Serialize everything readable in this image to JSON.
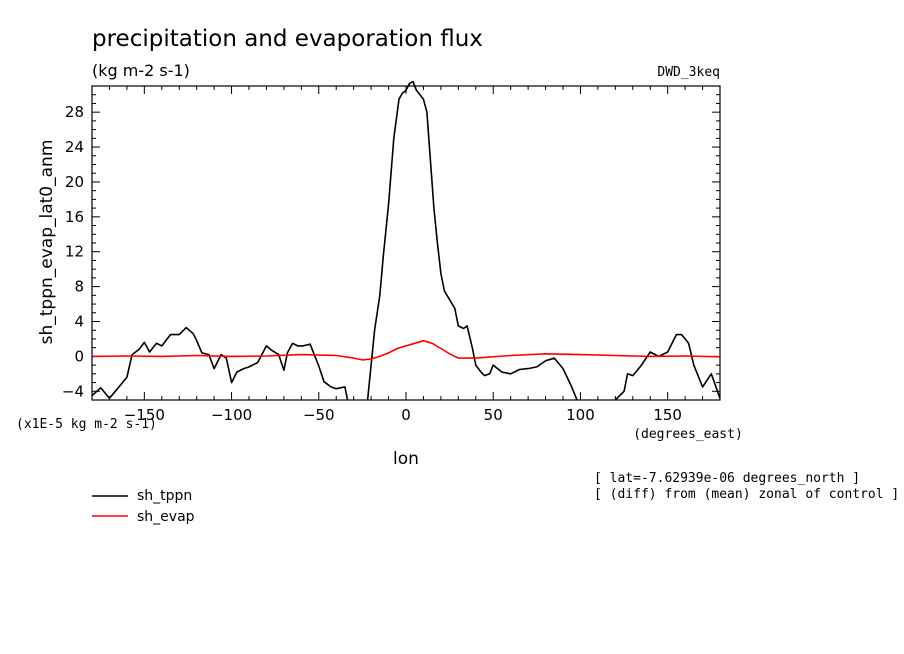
{
  "chart_data": {
    "type": "line",
    "title": "precipitation and evaporation flux",
    "units": "(kg m-2 s-1)",
    "dataset_label": "DWD_3keq",
    "ylabel": "sh_tppn_evap_lat0_anm",
    "xlabel": "lon",
    "x_units": "(degrees_east)",
    "y_scale_note": "(x1E-5 kg m-2 s-1)",
    "xlim": [
      -180,
      180
    ],
    "ylim": [
      -5,
      31
    ],
    "x_ticks": [
      -150,
      -100,
      -50,
      0,
      50,
      100,
      150
    ],
    "y_ticks": [
      -4,
      0,
      4,
      8,
      12,
      16,
      20,
      24,
      28
    ],
    "notes": [
      "[ lat=-7.62939e-06 degrees_north ]",
      "[ (diff) from (mean) zonal of control ]"
    ],
    "series": [
      {
        "name": "sh_tppn",
        "color": "#000000",
        "x": [
          -180,
          -175,
          -170,
          -165,
          -160,
          -157,
          -153,
          -150,
          -147,
          -143,
          -140,
          -135,
          -130,
          -126,
          -122,
          -120,
          -117,
          -113,
          -110,
          -106,
          -103,
          -100,
          -97,
          -93,
          -90,
          -85,
          -80,
          -77,
          -73,
          -70,
          -68,
          -65,
          -62,
          -59,
          -55,
          -50,
          -47,
          -43,
          -40,
          -35,
          -33,
          -30,
          -27,
          -25,
          -22,
          -20,
          -18,
          -15,
          -13,
          -10,
          -7,
          -4,
          -2,
          0,
          2,
          4,
          6,
          8,
          10,
          12,
          14,
          16,
          18,
          20,
          22,
          25,
          28,
          30,
          33,
          35,
          38,
          40,
          43,
          45,
          48,
          50,
          55,
          60,
          65,
          70,
          75,
          80,
          85,
          90,
          95,
          98,
          100,
          105,
          110,
          115,
          120,
          125,
          127,
          130,
          135,
          140,
          145,
          150,
          155,
          158,
          162,
          165,
          170,
          175,
          180
        ],
        "values": [
          -4.5,
          -3.6,
          -4.8,
          -3.6,
          -2.4,
          0.2,
          0.8,
          1.6,
          0.5,
          1.5,
          1.2,
          2.5,
          2.5,
          3.3,
          2.6,
          1.8,
          0.4,
          0.2,
          -1.4,
          0.2,
          -0.2,
          -3.0,
          -1.8,
          -1.4,
          -1.2,
          -0.7,
          1.2,
          0.7,
          0.2,
          -1.6,
          0.4,
          1.5,
          1.2,
          1.2,
          1.4,
          -1.1,
          -2.9,
          -3.5,
          -3.7,
          -3.5,
          -5.5,
          -5.0,
          -5.3,
          -5.5,
          -5.0,
          -1.0,
          3.0,
          7.0,
          11.5,
          17.5,
          25.0,
          29.5,
          30.2,
          30.5,
          31.3,
          31.5,
          30.5,
          30.0,
          29.5,
          28.0,
          22.5,
          17.0,
          13.0,
          9.5,
          7.5,
          6.5,
          5.5,
          3.5,
          3.2,
          3.5,
          1.0,
          -1.0,
          -1.8,
          -2.2,
          -2.0,
          -1.0,
          -1.8,
          -2.0,
          -1.5,
          -1.4,
          -1.2,
          -0.5,
          -0.2,
          -1.4,
          -3.5,
          -5.0,
          -6.0,
          -5.0,
          -6.0,
          -5.5,
          -5.0,
          -4.0,
          -2.0,
          -2.2,
          -1.0,
          0.5,
          0.0,
          0.5,
          2.5,
          2.5,
          1.5,
          -1.0,
          -3.5,
          -2.0,
          -4.8
        ]
      },
      {
        "name": "sh_evap",
        "color": "#ff0000",
        "x": [
          -180,
          -160,
          -140,
          -120,
          -100,
          -80,
          -60,
          -40,
          -30,
          -25,
          -20,
          -15,
          -10,
          -5,
          0,
          5,
          10,
          15,
          20,
          25,
          30,
          40,
          60,
          80,
          100,
          120,
          140,
          160,
          180
        ],
        "values": [
          0.0,
          0.05,
          0.0,
          0.1,
          0.0,
          0.05,
          0.2,
          0.1,
          -0.2,
          -0.4,
          -0.3,
          0.0,
          0.4,
          0.9,
          1.2,
          1.5,
          1.8,
          1.5,
          0.9,
          0.3,
          -0.2,
          -0.2,
          0.1,
          0.3,
          0.2,
          0.1,
          0.0,
          0.05,
          -0.05
        ]
      }
    ]
  }
}
